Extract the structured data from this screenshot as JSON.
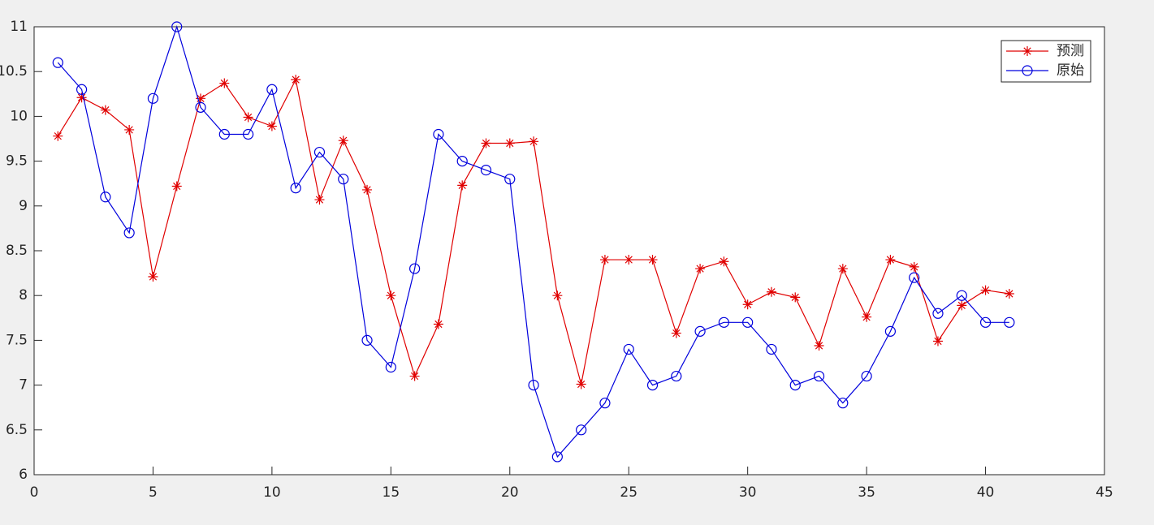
{
  "chart_data": {
    "type": "line",
    "x": [
      1,
      2,
      3,
      4,
      5,
      6,
      7,
      8,
      9,
      10,
      11,
      12,
      13,
      14,
      15,
      16,
      17,
      18,
      19,
      20,
      21,
      22,
      23,
      24,
      25,
      26,
      27,
      28,
      29,
      30,
      31,
      32,
      33,
      34,
      35,
      36,
      37,
      38,
      39,
      40,
      41
    ],
    "series": [
      {
        "name": "预测",
        "color": "#e00000",
        "marker": "star",
        "values": [
          9.78,
          10.21,
          10.07,
          9.85,
          8.21,
          9.22,
          10.2,
          10.37,
          9.99,
          9.89,
          10.41,
          9.07,
          9.73,
          9.18,
          8.0,
          7.1,
          7.68,
          9.23,
          9.7,
          9.7,
          9.72,
          8.0,
          7.01,
          8.4,
          8.4,
          8.4,
          7.58,
          8.3,
          8.38,
          7.9,
          8.04,
          7.98,
          7.44,
          8.3,
          7.76,
          8.4,
          8.32,
          7.49,
          7.89,
          8.06,
          8.02
        ]
      },
      {
        "name": "原始",
        "color": "#0000dd",
        "marker": "circle",
        "values": [
          10.6,
          10.3,
          9.1,
          8.7,
          10.2,
          11,
          10.1,
          9.8,
          9.8,
          10.3,
          9.2,
          9.6,
          9.3,
          7.5,
          7.2,
          8.3,
          9.8,
          9.5,
          9.4,
          9.3,
          7.0,
          6.2,
          6.5,
          6.8,
          7.4,
          7.0,
          7.1,
          7.6,
          7.7,
          7.7,
          7.4,
          7.0,
          7.1,
          6.8,
          7.1,
          7.6,
          8.2,
          7.8,
          8.0,
          7.7,
          7.7
        ]
      }
    ],
    "xlim": [
      0,
      45
    ],
    "xticks": [
      0,
      5,
      10,
      15,
      20,
      25,
      30,
      35,
      40,
      45
    ],
    "ylim": [
      6,
      11
    ],
    "yticks": [
      6,
      6.5,
      7,
      7.5,
      8,
      8.5,
      9,
      9.5,
      10,
      10.5,
      11
    ],
    "grid": false,
    "legend": "northeast"
  }
}
